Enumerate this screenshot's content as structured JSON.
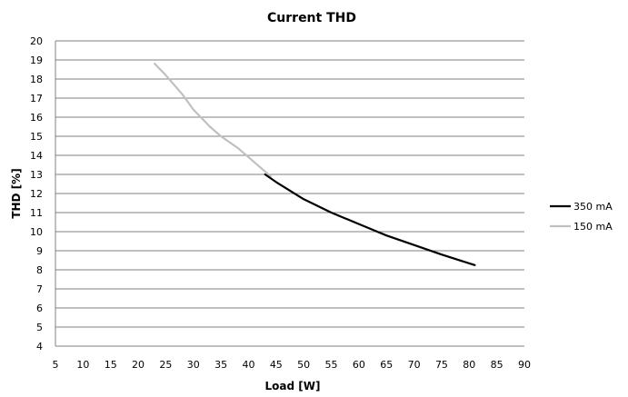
{
  "chart_data": {
    "type": "line",
    "title": "Current THD",
    "xlabel": "Load [W]",
    "ylabel": "THD [%]",
    "xlim": [
      5,
      90
    ],
    "ylim": [
      4,
      20
    ],
    "xticks": [
      "5",
      "10",
      "15",
      "20",
      "25",
      "30",
      "35",
      "40",
      "45",
      "50",
      "55",
      "60",
      "65",
      "70",
      "75",
      "80",
      "85",
      "90"
    ],
    "yticks": [
      "4",
      "5",
      "6",
      "7",
      "8",
      "9",
      "10",
      "11",
      "12",
      "13",
      "14",
      "15",
      "16",
      "17",
      "18",
      "19",
      "20"
    ],
    "grid": "horizontal",
    "legend_position": "right",
    "series": [
      {
        "name": "350 mA",
        "color": "#000000",
        "points": [
          [
            43,
            13.0
          ],
          [
            45,
            12.6
          ],
          [
            50,
            11.7
          ],
          [
            55,
            11.0
          ],
          [
            60,
            10.4
          ],
          [
            65,
            9.8
          ],
          [
            70,
            9.3
          ],
          [
            75,
            8.8
          ],
          [
            81,
            8.25
          ]
        ]
      },
      {
        "name": "150 mA",
        "color": "#c0c0c0",
        "points": [
          [
            23,
            18.8
          ],
          [
            25,
            18.2
          ],
          [
            28,
            17.2
          ],
          [
            30,
            16.4
          ],
          [
            33,
            15.5
          ],
          [
            35,
            15.0
          ],
          [
            38,
            14.4
          ],
          [
            40,
            13.9
          ],
          [
            42,
            13.4
          ],
          [
            44,
            12.9
          ]
        ]
      }
    ]
  }
}
